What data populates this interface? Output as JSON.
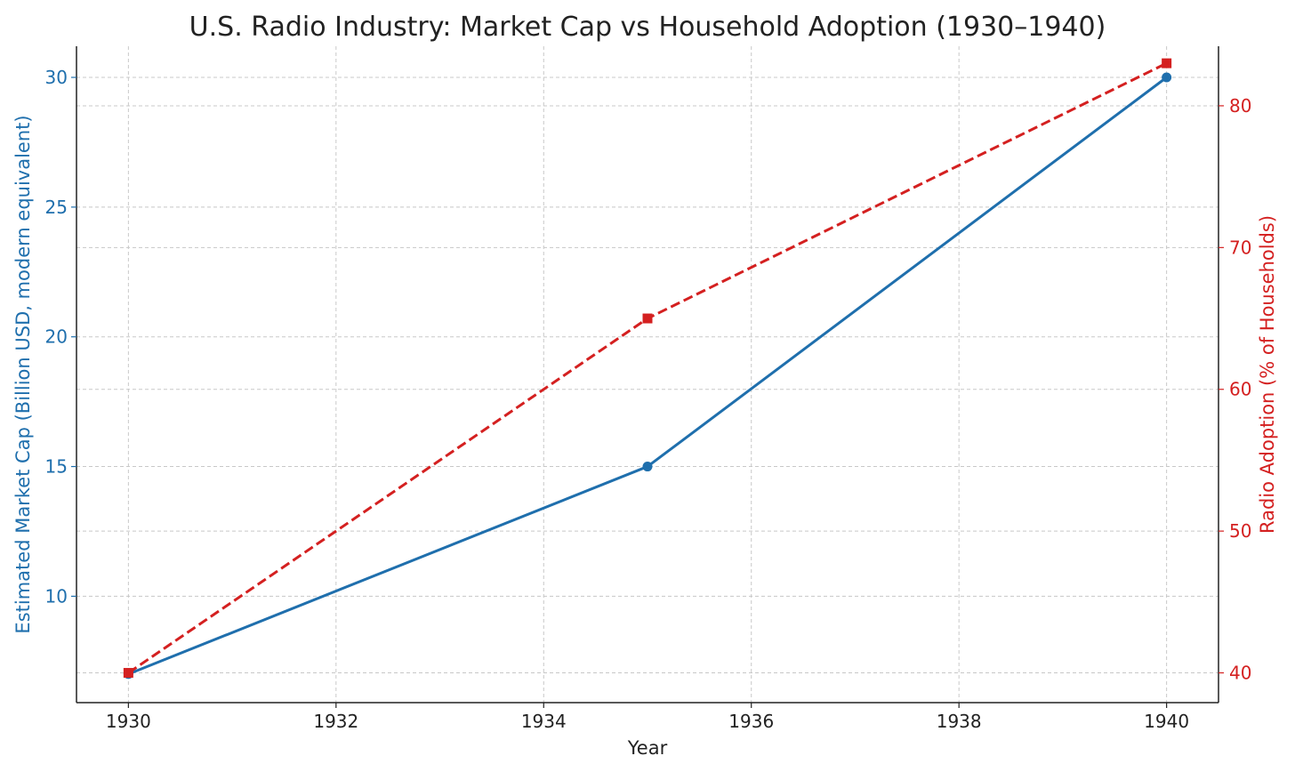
{
  "chart_data": {
    "type": "line",
    "title": "U.S. Radio Industry: Market Cap vs Household Adoption (1930–1940)",
    "xlabel": "Year",
    "ylabel_left": "Estimated Market Cap (Billion USD, modern equivalent)",
    "ylabel_right": "Radio Adoption (% of Households)",
    "xlim": [
      1929.5,
      1940.5
    ],
    "ylim_left": [
      5.9,
      31.2
    ],
    "ylim_right": [
      37.9,
      84.2
    ],
    "x_ticks": [
      1930,
      1932,
      1934,
      1936,
      1938,
      1940
    ],
    "y_left_ticks": [
      10,
      15,
      20,
      25,
      30
    ],
    "y_right_ticks": [
      40,
      50,
      60,
      70,
      80
    ],
    "grid": true,
    "series": [
      {
        "key": "market_cap",
        "axis": "left",
        "color": "#1f6fad",
        "style": "solid",
        "marker": "circle",
        "x": [
          1930,
          1935,
          1940
        ],
        "values": [
          7,
          15,
          30
        ]
      },
      {
        "key": "adoption",
        "axis": "right",
        "color": "#d42020",
        "style": "dashed",
        "marker": "square",
        "x": [
          1930,
          1935,
          1940
        ],
        "values": [
          40,
          65,
          83
        ]
      }
    ]
  }
}
